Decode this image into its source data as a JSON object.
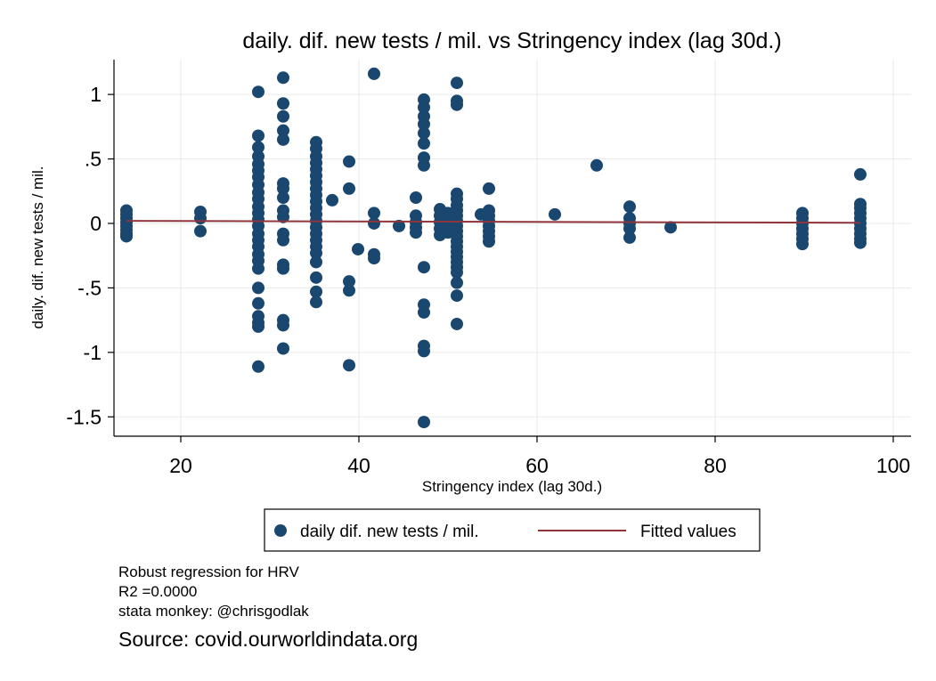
{
  "chart_data": {
    "type": "scatter",
    "title": "daily. dif. new tests / mil. vs Stringency index (lag 30d.)",
    "xlabel": "Stringency index (lag 30d.)",
    "ylabel": "daily. dif. new tests / mil.",
    "xlim": [
      12.5,
      102
    ],
    "ylim": [
      -1.65,
      1.27
    ],
    "xticks": [
      20,
      40,
      60,
      80,
      100
    ],
    "xtick_labels": [
      "20",
      "40",
      "60",
      "80",
      "100"
    ],
    "yticks": [
      1,
      0.5,
      0,
      -0.5,
      -1,
      -1.5
    ],
    "ytick_labels": [
      "1",
      ".5",
      "0",
      "-.5",
      "-1",
      "-1.5"
    ],
    "grid": true,
    "legend_position": "bottom",
    "colors": {
      "points": "#1a476f",
      "fit": "#90353b",
      "grid": "#eaeaea"
    },
    "series": [
      {
        "name": "daily dif. new tests / mil.",
        "kind": "scatter",
        "points": [
          [
            13.9,
            0.1
          ],
          [
            13.9,
            0.07
          ],
          [
            13.9,
            0.04
          ],
          [
            13.9,
            0.01
          ],
          [
            13.9,
            -0.02
          ],
          [
            13.9,
            -0.05
          ],
          [
            13.9,
            -0.08
          ],
          [
            13.9,
            -0.1
          ],
          [
            22.2,
            0.09
          ],
          [
            22.2,
            0.04
          ],
          [
            22.2,
            -0.06
          ],
          [
            28.7,
            1.02
          ],
          [
            28.7,
            0.68
          ],
          [
            28.7,
            0.59
          ],
          [
            28.7,
            0.52
          ],
          [
            28.7,
            0.46
          ],
          [
            28.7,
            0.41
          ],
          [
            28.7,
            0.36
          ],
          [
            28.7,
            0.3
          ],
          [
            28.7,
            0.24
          ],
          [
            28.7,
            0.19
          ],
          [
            28.7,
            0.13
          ],
          [
            28.7,
            0.08
          ],
          [
            28.7,
            0.03
          ],
          [
            28.7,
            -0.02
          ],
          [
            28.7,
            -0.08
          ],
          [
            28.7,
            -0.13
          ],
          [
            28.7,
            -0.18
          ],
          [
            28.7,
            -0.24
          ],
          [
            28.7,
            -0.29
          ],
          [
            28.7,
            -0.35
          ],
          [
            28.7,
            -0.5
          ],
          [
            28.7,
            -0.62
          ],
          [
            28.7,
            -0.72
          ],
          [
            28.7,
            -0.77
          ],
          [
            28.7,
            -0.8
          ],
          [
            28.7,
            -1.11
          ],
          [
            31.5,
            1.13
          ],
          [
            31.5,
            0.93
          ],
          [
            31.5,
            0.83
          ],
          [
            31.5,
            0.72
          ],
          [
            31.5,
            0.65
          ],
          [
            31.5,
            0.31
          ],
          [
            31.5,
            0.27
          ],
          [
            31.5,
            0.2
          ],
          [
            31.5,
            0.1
          ],
          [
            31.5,
            0.05
          ],
          [
            31.5,
            -0.08
          ],
          [
            31.5,
            -0.13
          ],
          [
            31.5,
            -0.32
          ],
          [
            31.5,
            -0.35
          ],
          [
            31.5,
            -0.75
          ],
          [
            31.5,
            -0.79
          ],
          [
            31.5,
            -0.97
          ],
          [
            35.2,
            0.63
          ],
          [
            35.2,
            0.58
          ],
          [
            35.2,
            0.52
          ],
          [
            35.2,
            0.47
          ],
          [
            35.2,
            0.42
          ],
          [
            35.2,
            0.37
          ],
          [
            35.2,
            0.32
          ],
          [
            35.2,
            0.27
          ],
          [
            35.2,
            0.22
          ],
          [
            35.2,
            0.17
          ],
          [
            35.2,
            0.12
          ],
          [
            35.2,
            0.07
          ],
          [
            35.2,
            0.02
          ],
          [
            35.2,
            -0.03
          ],
          [
            35.2,
            -0.08
          ],
          [
            35.2,
            -0.13
          ],
          [
            35.2,
            -0.18
          ],
          [
            35.2,
            -0.23
          ],
          [
            35.2,
            -0.3
          ],
          [
            35.2,
            -0.42
          ],
          [
            35.2,
            -0.53
          ],
          [
            35.2,
            -0.61
          ],
          [
            37.0,
            0.18
          ],
          [
            38.9,
            0.48
          ],
          [
            38.9,
            0.27
          ],
          [
            38.9,
            -0.45
          ],
          [
            38.9,
            -0.52
          ],
          [
            38.9,
            -1.1
          ],
          [
            39.9,
            -0.2
          ],
          [
            41.7,
            1.16
          ],
          [
            41.7,
            0.08
          ],
          [
            41.7,
            0.0
          ],
          [
            41.7,
            -0.24
          ],
          [
            41.7,
            -0.27
          ],
          [
            44.5,
            -0.02
          ],
          [
            46.4,
            0.2
          ],
          [
            46.4,
            0.06
          ],
          [
            46.4,
            0.01
          ],
          [
            46.4,
            -0.03
          ],
          [
            46.4,
            -0.07
          ],
          [
            47.3,
            0.96
          ],
          [
            47.3,
            0.9
          ],
          [
            47.3,
            0.83
          ],
          [
            47.3,
            0.77
          ],
          [
            47.3,
            0.7
          ],
          [
            47.3,
            0.62
          ],
          [
            47.3,
            0.51
          ],
          [
            47.3,
            0.45
          ],
          [
            47.3,
            -0.34
          ],
          [
            47.3,
            -0.63
          ],
          [
            47.3,
            -0.69
          ],
          [
            47.3,
            -0.95
          ],
          [
            47.3,
            -0.99
          ],
          [
            47.3,
            -1.54
          ],
          [
            49.1,
            0.11
          ],
          [
            49.1,
            0.06
          ],
          [
            49.1,
            0.01
          ],
          [
            49.1,
            -0.04
          ],
          [
            49.1,
            -0.09
          ],
          [
            50.0,
            0.08
          ],
          [
            50.0,
            0.03
          ],
          [
            50.0,
            -0.02
          ],
          [
            50.0,
            -0.07
          ],
          [
            51.0,
            1.09
          ],
          [
            51.0,
            0.95
          ],
          [
            51.0,
            0.92
          ],
          [
            51.0,
            0.23
          ],
          [
            51.0,
            0.19
          ],
          [
            51.0,
            0.14
          ],
          [
            51.0,
            0.1
          ],
          [
            51.0,
            0.06
          ],
          [
            51.0,
            0.02
          ],
          [
            51.0,
            -0.02
          ],
          [
            51.0,
            -0.06
          ],
          [
            51.0,
            -0.1
          ],
          [
            51.0,
            -0.14
          ],
          [
            51.0,
            -0.18
          ],
          [
            51.0,
            -0.22
          ],
          [
            51.0,
            -0.26
          ],
          [
            51.0,
            -0.3
          ],
          [
            51.0,
            -0.34
          ],
          [
            51.0,
            -0.38
          ],
          [
            51.0,
            -0.46
          ],
          [
            51.0,
            -0.56
          ],
          [
            51.0,
            -0.78
          ],
          [
            53.7,
            0.07
          ],
          [
            54.6,
            0.27
          ],
          [
            54.6,
            0.1
          ],
          [
            54.6,
            0.06
          ],
          [
            54.6,
            0.02
          ],
          [
            54.6,
            -0.02
          ],
          [
            54.6,
            -0.06
          ],
          [
            54.6,
            -0.1
          ],
          [
            54.6,
            -0.14
          ],
          [
            62.0,
            0.07
          ],
          [
            66.7,
            0.45
          ],
          [
            70.4,
            0.13
          ],
          [
            70.4,
            0.04
          ],
          [
            70.4,
            0.0
          ],
          [
            70.4,
            -0.04
          ],
          [
            70.4,
            -0.11
          ],
          [
            75.0,
            -0.03
          ],
          [
            89.8,
            0.08
          ],
          [
            89.8,
            0.04
          ],
          [
            89.8,
            0.0
          ],
          [
            89.8,
            -0.04
          ],
          [
            89.8,
            -0.08
          ],
          [
            89.8,
            -0.12
          ],
          [
            89.8,
            -0.16
          ],
          [
            96.3,
            0.38
          ],
          [
            96.3,
            0.15
          ],
          [
            96.3,
            0.12
          ],
          [
            96.3,
            0.08
          ],
          [
            96.3,
            0.04
          ],
          [
            96.3,
            0.0
          ],
          [
            96.3,
            -0.04
          ],
          [
            96.3,
            -0.08
          ],
          [
            96.3,
            -0.12
          ],
          [
            96.3,
            -0.15
          ]
        ]
      },
      {
        "name": "Fitted values",
        "kind": "line",
        "points": [
          [
            13.9,
            0.02
          ],
          [
            96.3,
            0.005
          ]
        ]
      }
    ]
  },
  "notes": {
    "line1": "Robust regression for HRV",
    "line2": "R2 =0.0000",
    "line3": "stata monkey: @chrisgodlak",
    "source": "Source: covid.ourworldindata.org"
  }
}
